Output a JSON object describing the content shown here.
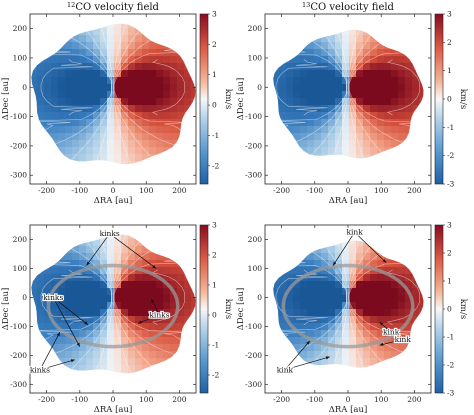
{
  "figure": {
    "titles": [
      {
        "prefix": "12",
        "text": "CO velocity field"
      },
      {
        "prefix": "13",
        "text": "CO velocity field"
      }
    ]
  },
  "colors": {
    "negative": "#2a6fb0",
    "positive": "#b2182b",
    "midpoint": "#f7f7f7",
    "ring": "#9a9a9a"
  },
  "chart_data": [
    {
      "type": "heatmap",
      "panel": "top-left",
      "xlabel": "ΔRA [au]",
      "ylabel": "ΔDec [au]",
      "xlim": [
        -250,
        250
      ],
      "ylim": [
        -330,
        250
      ],
      "xticks": [
        -200,
        -100,
        0,
        100,
        200
      ],
      "yticks": [
        -300,
        -200,
        -100,
        0,
        100,
        200
      ],
      "colorbar": {
        "label": "km/s",
        "range": [
          -2.6,
          3
        ],
        "ticks": [
          -2,
          -1,
          0,
          1,
          2,
          3
        ]
      },
      "annotations": []
    },
    {
      "type": "heatmap",
      "panel": "top-right",
      "xlabel": "ΔRA [au]",
      "ylabel": "ΔDec [au]",
      "xlim": [
        -250,
        250
      ],
      "ylim": [
        -330,
        250
      ],
      "xticks": [
        -200,
        -100,
        0,
        100,
        200
      ],
      "yticks": [
        -300,
        -200,
        -100,
        0,
        100,
        200
      ],
      "colorbar": {
        "label": "km/s",
        "range": [
          -3,
          3
        ],
        "ticks": [
          -3,
          -2,
          -1,
          0,
          1,
          2,
          3
        ]
      },
      "annotations": []
    },
    {
      "type": "heatmap",
      "panel": "bottom-left",
      "xlabel": "ΔRA [au]",
      "ylabel": "ΔDec [au]",
      "xlim": [
        -250,
        250
      ],
      "ylim": [
        -330,
        250
      ],
      "xticks": [
        -200,
        -100,
        0,
        100,
        200
      ],
      "yticks": [
        -300,
        -200,
        -100,
        0,
        100,
        200
      ],
      "colorbar": {
        "label": "km/s",
        "range": [
          -2.6,
          3
        ],
        "ticks": [
          -2,
          -1,
          0,
          1,
          2,
          3
        ]
      },
      "annotations": [
        {
          "text": "kinks",
          "at": [
            -10,
            220
          ],
          "arrows_to": [
            [
              -80,
              110
            ],
            [
              130,
              100
            ]
          ]
        },
        {
          "text": "kinks",
          "at": [
            -180,
            0
          ],
          "arrows_to": [
            [
              -75,
              -95
            ],
            [
              -100,
              -170
            ]
          ]
        },
        {
          "text": "kinks",
          "at": [
            140,
            -60
          ],
          "arrows_to": [
            [
              115,
              -5
            ],
            [
              75,
              -90
            ]
          ]
        },
        {
          "text": "kinks",
          "at": [
            -220,
            -250
          ],
          "arrows_to": [
            [
              -160,
              -120
            ],
            [
              -115,
              -215
            ]
          ]
        }
      ]
    },
    {
      "type": "heatmap",
      "panel": "bottom-right",
      "xlabel": "ΔRA [au]",
      "ylabel": "ΔDec [au]",
      "xlim": [
        -250,
        250
      ],
      "ylim": [
        -330,
        250
      ],
      "xticks": [
        -200,
        -100,
        0,
        100,
        200
      ],
      "yticks": [
        -300,
        -200,
        -100,
        0,
        100,
        200
      ],
      "colorbar": {
        "label": "km/s",
        "range": [
          -3,
          3
        ],
        "ticks": [
          -3,
          -2,
          -1,
          0,
          1,
          2,
          3
        ]
      },
      "annotations": [
        {
          "text": "kink",
          "at": [
            20,
            225
          ],
          "arrows_to": [
            [
              -45,
              110
            ],
            [
              115,
              120
            ]
          ]
        },
        {
          "text": "kink",
          "at": [
            130,
            -120
          ],
          "arrows_to": [
            [
              95,
              -85
            ]
          ]
        },
        {
          "text": "kink",
          "at": [
            165,
            -145
          ],
          "arrows_to": [
            [
              95,
              -165
            ]
          ]
        },
        {
          "text": "kink",
          "at": [
            -190,
            -250
          ],
          "arrows_to": [
            [
              -115,
              -150
            ],
            [
              -55,
              -205
            ]
          ]
        }
      ]
    }
  ]
}
